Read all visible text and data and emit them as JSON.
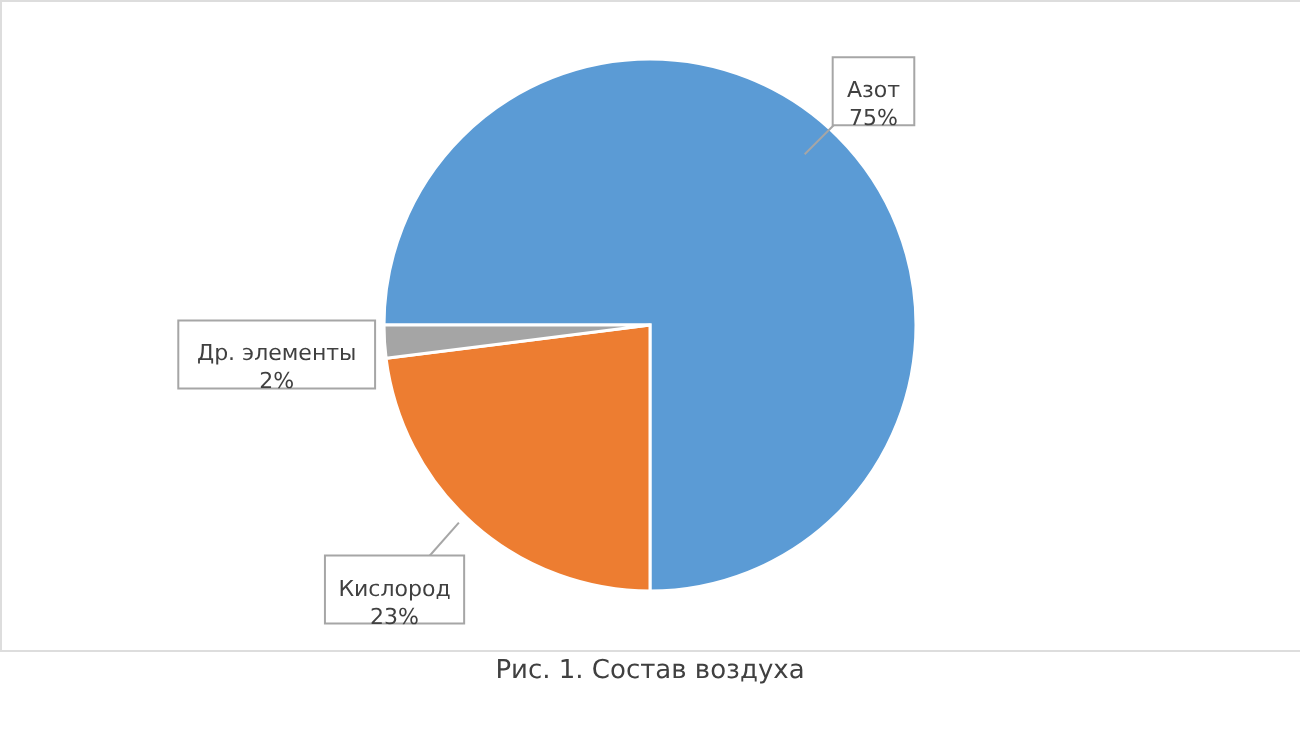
{
  "chart_data": {
    "type": "pie",
    "title": "Рис. 1. Состав воздуха",
    "categories": [
      "Азот",
      "Кислород",
      "Др. элементы"
    ],
    "values": [
      75,
      23,
      2
    ],
    "value_labels": [
      "75%",
      "23%",
      "2%"
    ],
    "colors": [
      "#5b9bd5",
      "#ed7d31",
      "#a5a5a5"
    ]
  }
}
